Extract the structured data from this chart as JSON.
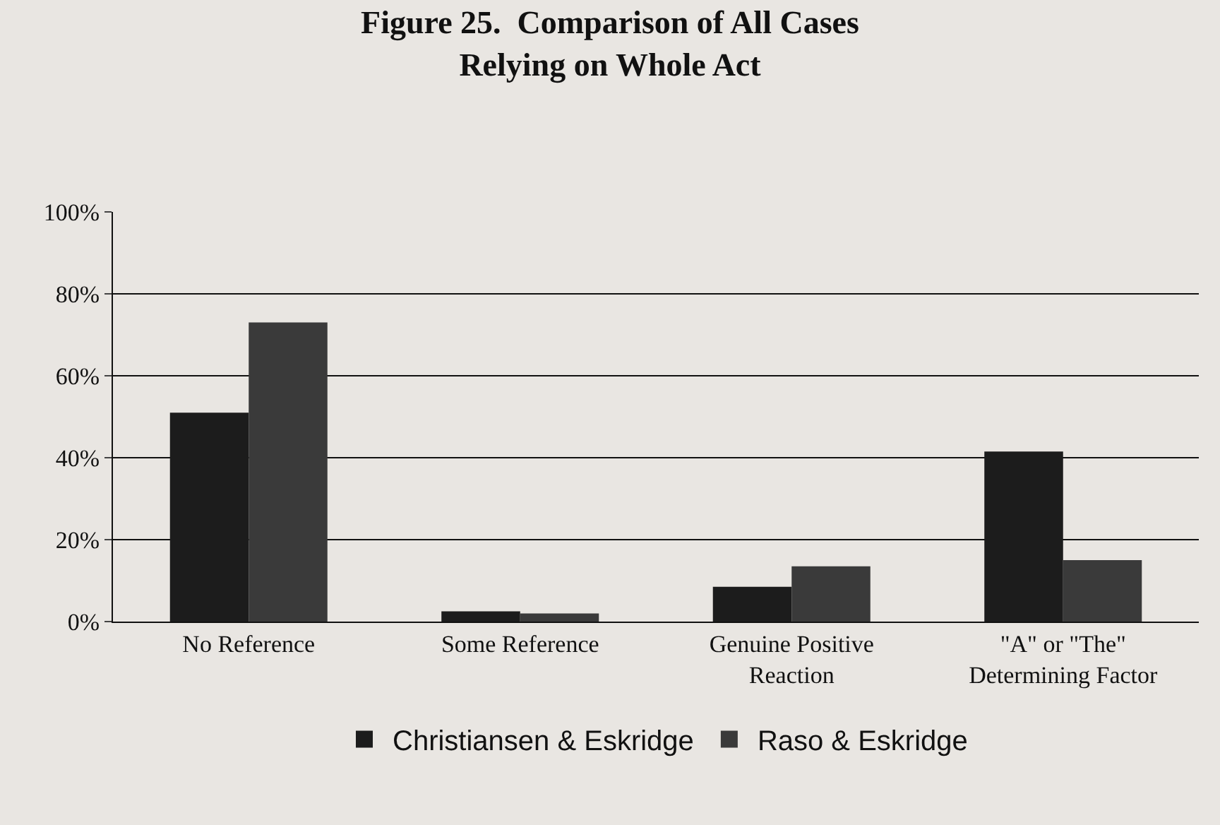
{
  "chart_data": {
    "type": "bar",
    "title": "Figure 25.  Comparison of All Cases\nRelying on Whole Act",
    "categories": [
      "No Reference",
      "Some Reference",
      "Genuine Positive\nReaction",
      "\"A\" or \"The\"\nDetermining Factor"
    ],
    "series": [
      {
        "name": "Christiansen & Eskridge",
        "color": "#1c1c1c",
        "values": [
          51,
          2.5,
          8.5,
          41.5
        ]
      },
      {
        "name": "Raso & Eskridge",
        "color": "#3a3a3a",
        "values": [
          73,
          2,
          13.5,
          15
        ]
      }
    ],
    "ylim": [
      0,
      100
    ],
    "yticks": [
      {
        "value": 0,
        "label": "0%"
      },
      {
        "value": 20,
        "label": "20%"
      },
      {
        "value": 40,
        "label": "40%"
      },
      {
        "value": 60,
        "label": "60%"
      },
      {
        "value": 80,
        "label": "80%"
      },
      {
        "value": 100,
        "label": "100%"
      }
    ],
    "grid": "y",
    "legend": "bottom"
  }
}
